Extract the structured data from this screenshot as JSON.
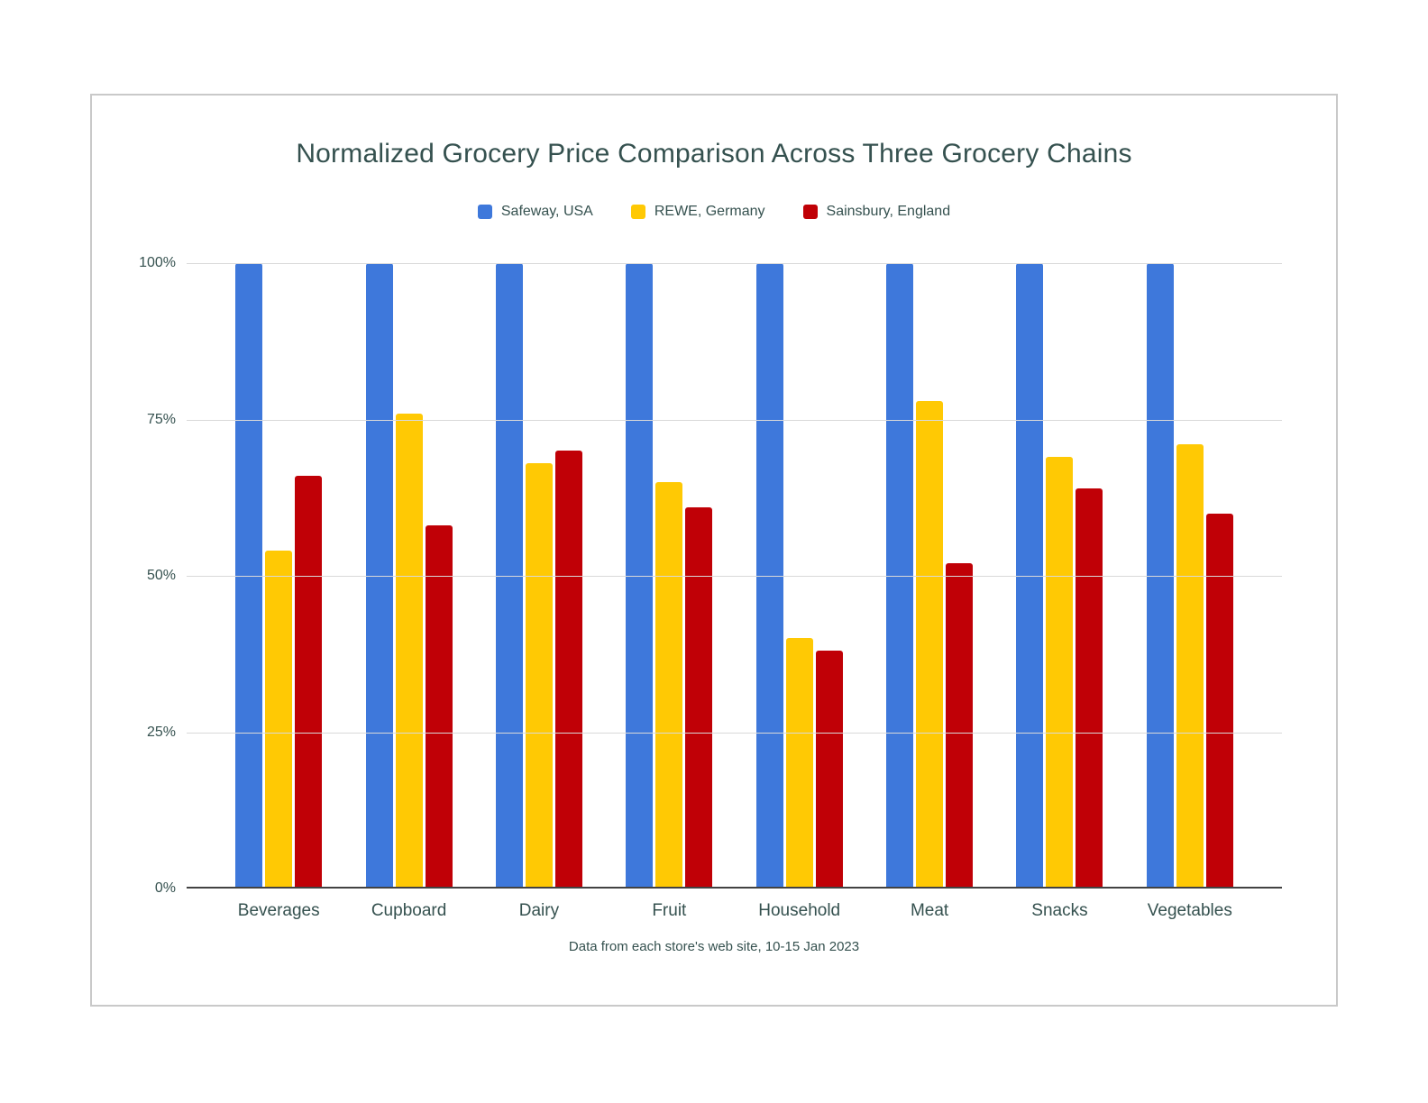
{
  "chart_data": {
    "type": "bar",
    "title": "Normalized Grocery Price Comparison Across Three Grocery Chains",
    "footnote": "Data from each store's web site, 10-15 Jan 2023",
    "categories": [
      "Beverages",
      "Cupboard",
      "Dairy",
      "Fruit",
      "Household",
      "Meat",
      "Snacks",
      "Vegetables"
    ],
    "series": [
      {
        "name": "Safeway, USA",
        "color": "#3e78db",
        "values": [
          100,
          100,
          100,
          100,
          100,
          100,
          100,
          100
        ]
      },
      {
        "name": "REWE, Germany",
        "color": "#ffc904",
        "values": [
          54,
          76,
          68,
          65,
          40,
          78,
          69,
          71
        ]
      },
      {
        "name": "Sainsbury, England",
        "color": "#c00006",
        "values": [
          66,
          58,
          70,
          61,
          38,
          52,
          64,
          60
        ]
      }
    ],
    "unit": "%",
    "ylim": [
      0,
      100
    ],
    "yticks": [
      {
        "value": 0,
        "label": "0%"
      },
      {
        "value": 25,
        "label": "25%"
      },
      {
        "value": 50,
        "label": "50%"
      },
      {
        "value": 75,
        "label": "75%"
      },
      {
        "value": 100,
        "label": "100%"
      }
    ],
    "grid": true,
    "legend_position": "top",
    "colors": {
      "text": "#35514f",
      "gridline": "#d9d9d9",
      "axis_line": "#424242",
      "card_border": "#c9c9c9",
      "background": "#ffffff"
    }
  }
}
